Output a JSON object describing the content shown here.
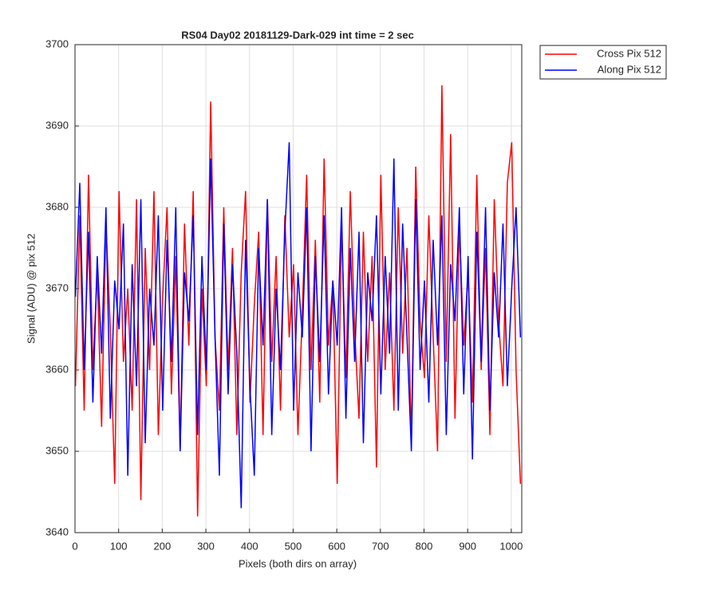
{
  "chart_data": {
    "type": "line",
    "title": "RS04 Day02 20181129-Dark-029 int time = 2 sec",
    "xlabel": "Pixels (both dirs on array)",
    "ylabel": "Signal (ADU) @ pix 512",
    "x": [
      1,
      11,
      21,
      31,
      41,
      51,
      61,
      71,
      81,
      91,
      101,
      111,
      121,
      131,
      141,
      151,
      161,
      171,
      181,
      191,
      201,
      211,
      221,
      231,
      241,
      251,
      261,
      271,
      281,
      291,
      301,
      311,
      321,
      331,
      341,
      351,
      361,
      371,
      381,
      391,
      401,
      411,
      421,
      431,
      441,
      451,
      461,
      471,
      481,
      491,
      501,
      511,
      521,
      531,
      541,
      551,
      561,
      571,
      581,
      591,
      601,
      611,
      621,
      631,
      641,
      651,
      661,
      671,
      681,
      691,
      701,
      711,
      721,
      731,
      741,
      751,
      761,
      771,
      781,
      791,
      801,
      811,
      821,
      831,
      841,
      851,
      861,
      871,
      881,
      891,
      901,
      911,
      921,
      931,
      941,
      951,
      961,
      971,
      981,
      991,
      1001,
      1011,
      1021
    ],
    "series": [
      {
        "name": "Cross Pix 512",
        "color": "#ff0000",
        "values": [
          3658,
          3679,
          3655,
          3684,
          3660,
          3672,
          3653,
          3678,
          3665,
          3646,
          3682,
          3661,
          3670,
          3655,
          3681,
          3644,
          3675,
          3660,
          3682,
          3652,
          3669,
          3680,
          3657,
          3674,
          3650,
          3678,
          3663,
          3682,
          3642,
          3670,
          3658,
          3693,
          3664,
          3655,
          3680,
          3660,
          3675,
          3652,
          3672,
          3682,
          3656,
          3668,
          3677,
          3652,
          3681,
          3661,
          3674,
          3655,
          3679,
          3664,
          3673,
          3652,
          3667,
          3684,
          3660,
          3676,
          3656,
          3686,
          3663,
          3671,
          3646,
          3678,
          3659,
          3682,
          3665,
          3654,
          3677,
          3661,
          3674,
          3648,
          3684,
          3660,
          3672,
          3655,
          3680,
          3662,
          3675,
          3651,
          3685,
          3666,
          3659,
          3679,
          3664,
          3650,
          3695,
          3661,
          3689,
          3654,
          3678,
          3663,
          3672,
          3656,
          3684,
          3660,
          3675,
          3652,
          3681,
          3666,
          3658,
          3683,
          3688,
          3660,
          3646
        ]
      },
      {
        "name": "Along Pix 512",
        "color": "#0000ff",
        "values": [
          3669,
          3683,
          3660,
          3677,
          3656,
          3674,
          3662,
          3680,
          3654,
          3671,
          3665,
          3678,
          3647,
          3673,
          3658,
          3681,
          3651,
          3670,
          3663,
          3679,
          3655,
          3676,
          3661,
          3680,
          3650,
          3672,
          3666,
          3679,
          3652,
          3674,
          3660,
          3686,
          3664,
          3647,
          3678,
          3657,
          3673,
          3662,
          3643,
          3676,
          3658,
          3647,
          3675,
          3663,
          3681,
          3652,
          3670,
          3660,
          3677,
          3688,
          3655,
          3672,
          3664,
          3680,
          3650,
          3674,
          3661,
          3679,
          3657,
          3671,
          3663,
          3680,
          3654,
          3675,
          3661,
          3677,
          3651,
          3672,
          3666,
          3679,
          3657,
          3674,
          3662,
          3686,
          3655,
          3678,
          3664,
          3650,
          3681,
          3660,
          3671,
          3656,
          3676,
          3663,
          3679,
          3652,
          3673,
          3666,
          3680,
          3657,
          3674,
          3649,
          3677,
          3661,
          3680,
          3655,
          3672,
          3664,
          3678,
          3658,
          3670,
          3680,
          3664
        ]
      }
    ],
    "xlim": [
      0,
      1024
    ],
    "xticks": [
      0,
      100,
      200,
      300,
      400,
      500,
      600,
      700,
      800,
      900,
      1000
    ],
    "ylim": [
      3640,
      3700
    ],
    "yticks": [
      3640,
      3650,
      3660,
      3670,
      3680,
      3690,
      3700
    ],
    "grid": true,
    "legend": "northeastoutside"
  }
}
